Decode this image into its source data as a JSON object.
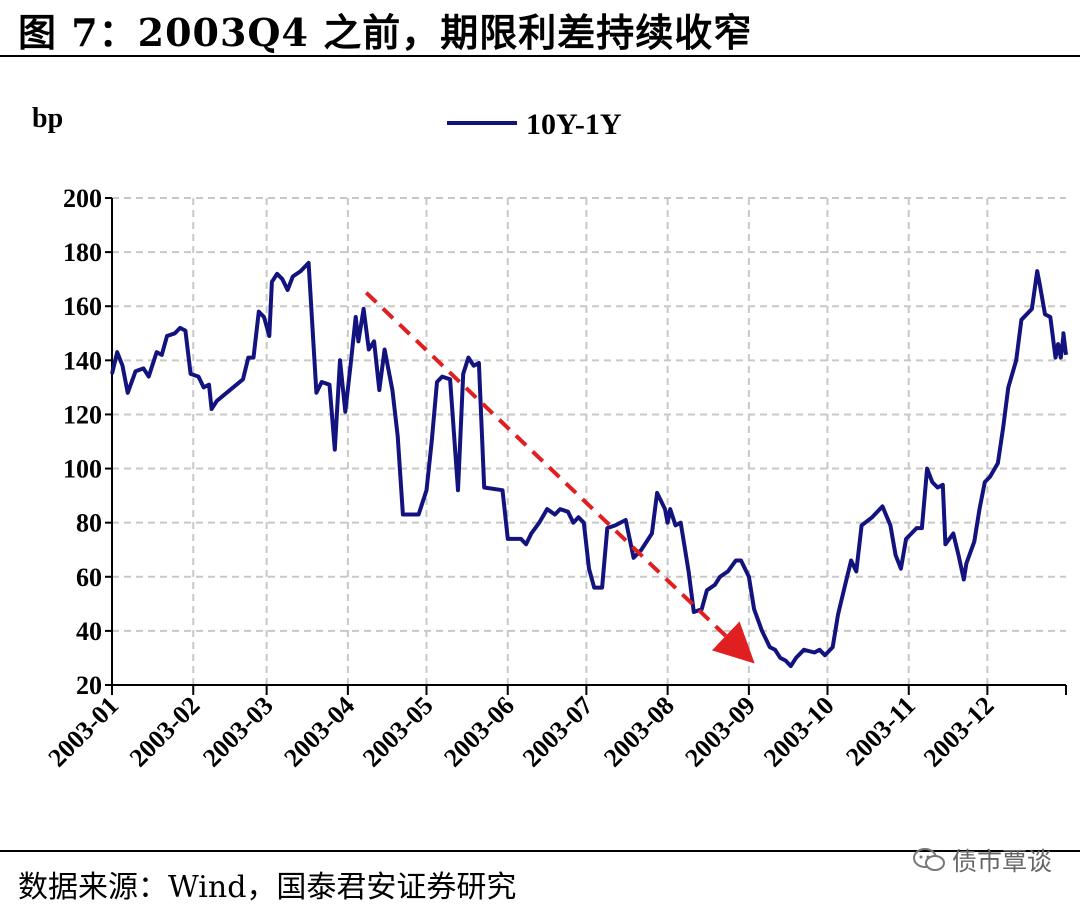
{
  "figure": {
    "title": "图 7：2003Q4 之前，期限利差持续收窄",
    "source": "数据来源：Wind，国泰君安证券研究",
    "watermark": "债市覃谈"
  },
  "chart_data": {
    "type": "line",
    "ylabel": "bp",
    "ylim": [
      20,
      200
    ],
    "yticks": [
      20,
      40,
      60,
      80,
      100,
      120,
      140,
      160,
      180,
      200
    ],
    "xticks": [
      "2003-01",
      "2003-02",
      "2003-03",
      "2003-04",
      "2003-05",
      "2003-06",
      "2003-07",
      "2003-08",
      "2003-09",
      "2003-10",
      "2003-11",
      "2003-12"
    ],
    "xlim": [
      "2003-01-01",
      "2003-12-31"
    ],
    "grid": "dashed",
    "legend": "top-center",
    "series": [
      {
        "name": "10Y-1Y",
        "color": "#13137f",
        "points": [
          [
            "2003-01-01",
            135
          ],
          [
            "2003-01-03",
            143
          ],
          [
            "2003-01-05",
            138
          ],
          [
            "2003-01-07",
            128
          ],
          [
            "2003-01-10",
            136
          ],
          [
            "2003-01-13",
            137
          ],
          [
            "2003-01-15",
            134
          ],
          [
            "2003-01-18",
            143
          ],
          [
            "2003-01-20",
            142
          ],
          [
            "2003-01-22",
            149
          ],
          [
            "2003-01-25",
            150
          ],
          [
            "2003-01-27",
            152
          ],
          [
            "2003-01-29",
            151
          ],
          [
            "2003-01-31",
            135
          ],
          [
            "2003-02-03",
            134
          ],
          [
            "2003-02-05",
            130
          ],
          [
            "2003-02-07",
            131
          ],
          [
            "2003-02-08",
            122
          ],
          [
            "2003-02-10",
            125
          ],
          [
            "2003-02-20",
            133
          ],
          [
            "2003-02-22",
            141
          ],
          [
            "2003-02-24",
            141
          ],
          [
            "2003-02-26",
            158
          ],
          [
            "2003-02-28",
            156
          ],
          [
            "2003-03-02",
            149
          ],
          [
            "2003-03-03",
            169
          ],
          [
            "2003-03-05",
            172
          ],
          [
            "2003-03-07",
            170
          ],
          [
            "2003-03-09",
            166
          ],
          [
            "2003-03-11",
            171
          ],
          [
            "2003-03-14",
            173
          ],
          [
            "2003-03-17",
            176
          ],
          [
            "2003-03-20",
            128
          ],
          [
            "2003-03-22",
            132
          ],
          [
            "2003-03-25",
            131
          ],
          [
            "2003-03-27",
            107
          ],
          [
            "2003-03-29",
            140
          ],
          [
            "2003-03-31",
            121
          ],
          [
            "2003-04-02",
            138
          ],
          [
            "2003-04-04",
            156
          ],
          [
            "2003-04-05",
            147
          ],
          [
            "2003-04-07",
            159
          ],
          [
            "2003-04-09",
            144
          ],
          [
            "2003-04-11",
            147
          ],
          [
            "2003-04-13",
            129
          ],
          [
            "2003-04-15",
            144
          ],
          [
            "2003-04-18",
            129
          ],
          [
            "2003-04-20",
            112
          ],
          [
            "2003-04-22",
            83
          ],
          [
            "2003-04-28",
            83
          ],
          [
            "2003-05-01",
            92
          ],
          [
            "2003-05-03",
            110
          ],
          [
            "2003-05-05",
            132
          ],
          [
            "2003-05-07",
            134
          ],
          [
            "2003-05-10",
            133
          ],
          [
            "2003-05-13",
            92
          ],
          [
            "2003-05-15",
            135
          ],
          [
            "2003-05-17",
            141
          ],
          [
            "2003-05-19",
            138
          ],
          [
            "2003-05-21",
            139
          ],
          [
            "2003-05-23",
            93
          ],
          [
            "2003-05-30",
            92
          ],
          [
            "2003-06-01",
            74
          ],
          [
            "2003-06-06",
            74
          ],
          [
            "2003-06-08",
            72
          ],
          [
            "2003-06-10",
            76
          ],
          [
            "2003-06-13",
            80
          ],
          [
            "2003-06-16",
            85
          ],
          [
            "2003-06-19",
            83
          ],
          [
            "2003-06-21",
            85
          ],
          [
            "2003-06-24",
            84
          ],
          [
            "2003-06-26",
            80
          ],
          [
            "2003-06-28",
            82
          ],
          [
            "2003-06-30",
            80
          ],
          [
            "2003-07-02",
            63
          ],
          [
            "2003-07-04",
            56
          ],
          [
            "2003-07-07",
            56
          ],
          [
            "2003-07-09",
            78
          ],
          [
            "2003-07-12",
            79
          ],
          [
            "2003-07-16",
            81
          ],
          [
            "2003-07-19",
            67
          ],
          [
            "2003-07-22",
            70
          ],
          [
            "2003-07-26",
            76
          ],
          [
            "2003-07-28",
            91
          ],
          [
            "2003-07-31",
            85
          ],
          [
            "2003-08-01",
            80
          ],
          [
            "2003-08-02",
            85
          ],
          [
            "2003-08-04",
            79
          ],
          [
            "2003-08-06",
            80
          ],
          [
            "2003-08-09",
            62
          ],
          [
            "2003-08-11",
            47
          ],
          [
            "2003-08-14",
            48
          ],
          [
            "2003-08-16",
            55
          ],
          [
            "2003-08-19",
            57
          ],
          [
            "2003-08-21",
            60
          ],
          [
            "2003-08-24",
            62
          ],
          [
            "2003-08-27",
            66
          ],
          [
            "2003-08-29",
            66
          ],
          [
            "2003-09-01",
            60
          ],
          [
            "2003-09-03",
            48
          ],
          [
            "2003-09-06",
            40
          ],
          [
            "2003-09-09",
            34
          ],
          [
            "2003-09-11",
            33
          ],
          [
            "2003-09-13",
            30
          ],
          [
            "2003-09-15",
            29
          ],
          [
            "2003-09-17",
            27
          ],
          [
            "2003-09-19",
            30
          ],
          [
            "2003-09-22",
            33
          ],
          [
            "2003-09-26",
            32
          ],
          [
            "2003-09-28",
            33
          ],
          [
            "2003-09-30",
            31
          ],
          [
            "2003-10-03",
            34
          ],
          [
            "2003-10-05",
            46
          ],
          [
            "2003-10-08",
            58
          ],
          [
            "2003-10-10",
            66
          ],
          [
            "2003-10-12",
            62
          ],
          [
            "2003-10-14",
            79
          ],
          [
            "2003-10-18",
            82
          ],
          [
            "2003-10-22",
            86
          ],
          [
            "2003-10-25",
            79
          ],
          [
            "2003-10-27",
            68
          ],
          [
            "2003-10-29",
            63
          ],
          [
            "2003-10-31",
            74
          ],
          [
            "2003-11-02",
            76
          ],
          [
            "2003-11-04",
            78
          ],
          [
            "2003-11-06",
            78
          ],
          [
            "2003-11-08",
            100
          ],
          [
            "2003-11-10",
            95
          ],
          [
            "2003-11-12",
            93
          ],
          [
            "2003-11-14",
            94
          ],
          [
            "2003-11-15",
            72
          ],
          [
            "2003-11-18",
            76
          ],
          [
            "2003-11-20",
            68
          ],
          [
            "2003-11-22",
            59
          ],
          [
            "2003-11-23",
            65
          ],
          [
            "2003-11-26",
            73
          ],
          [
            "2003-11-28",
            85
          ],
          [
            "2003-11-30",
            95
          ],
          [
            "2003-12-02",
            97
          ],
          [
            "2003-12-05",
            102
          ],
          [
            "2003-12-07",
            115
          ],
          [
            "2003-12-09",
            130
          ],
          [
            "2003-12-12",
            140
          ],
          [
            "2003-12-14",
            155
          ],
          [
            "2003-12-16",
            157
          ],
          [
            "2003-12-18",
            159
          ],
          [
            "2003-12-20",
            173
          ],
          [
            "2003-12-21",
            168
          ],
          [
            "2003-12-23",
            157
          ],
          [
            "2003-12-25",
            156
          ],
          [
            "2003-12-27",
            141
          ],
          [
            "2003-12-28",
            146
          ],
          [
            "2003-12-29",
            141
          ],
          [
            "2003-12-30",
            149
          ],
          [
            "2003-12-30",
            150
          ],
          [
            "2003-12-31",
            142
          ]
        ]
      }
    ],
    "annotations": [
      {
        "type": "arrow",
        "style": "dashed",
        "color": "#e02020",
        "from": [
          "2003-04-08",
          165
        ],
        "to": [
          "2003-09-01",
          30
        ]
      }
    ]
  }
}
